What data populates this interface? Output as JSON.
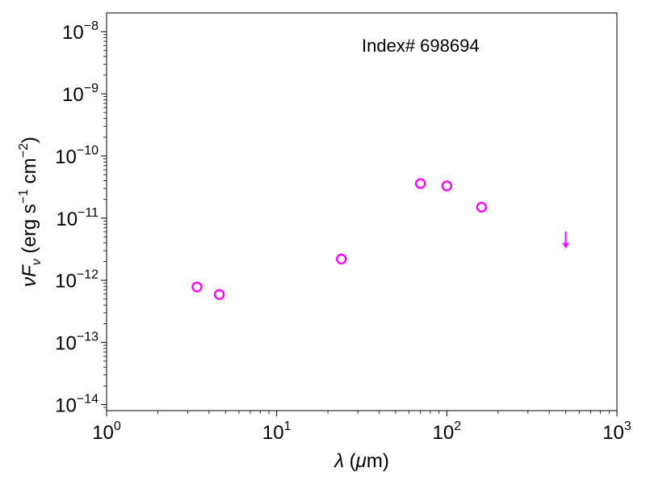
{
  "chart_data": {
    "type": "scatter",
    "annotation": "Index# 698694",
    "xlabel": {
      "symbol": "λ",
      "unit_open": " (",
      "unit_mu": "μ",
      "unit_rest": "m)"
    },
    "ylabel": {
      "nu": "ν",
      "F": "F",
      "sub": "ν",
      "open": " (erg s",
      "exp1": "−1",
      "mid": " cm",
      "exp2": "−2",
      "close": ")"
    },
    "x_scale": "log",
    "y_scale": "log",
    "xlim": [
      1,
      1000
    ],
    "ylim": [
      8e-15,
      2e-08
    ],
    "x_ticks": [
      {
        "value": 1,
        "base": "10",
        "exp": "0"
      },
      {
        "value": 10,
        "base": "10",
        "exp": "1"
      },
      {
        "value": 100,
        "base": "10",
        "exp": "2"
      },
      {
        "value": 1000,
        "base": "10",
        "exp": "3"
      }
    ],
    "y_ticks": [
      {
        "value": 1e-14,
        "base": "10",
        "exp": "−14"
      },
      {
        "value": 1e-13,
        "base": "10",
        "exp": "−13"
      },
      {
        "value": 1e-12,
        "base": "10",
        "exp": "−12"
      },
      {
        "value": 1e-11,
        "base": "10",
        "exp": "−11"
      },
      {
        "value": 1e-10,
        "base": "10",
        "exp": "−10"
      },
      {
        "value": 1e-09,
        "base": "10",
        "exp": "−9"
      },
      {
        "value": 1e-08,
        "base": "10",
        "exp": "−8"
      }
    ],
    "grid": false,
    "marker_color": "#ff00ff",
    "points": [
      {
        "x": 3.4,
        "y": 7.8e-13
      },
      {
        "x": 4.6,
        "y": 5.9e-13
      },
      {
        "x": 24,
        "y": 2.2e-12
      },
      {
        "x": 70,
        "y": 3.6e-11
      },
      {
        "x": 100,
        "y": 3.3e-11
      },
      {
        "x": 160,
        "y": 1.5e-11
      }
    ],
    "upper_limits": [
      {
        "x": 500,
        "y": 4e-12
      }
    ]
  }
}
